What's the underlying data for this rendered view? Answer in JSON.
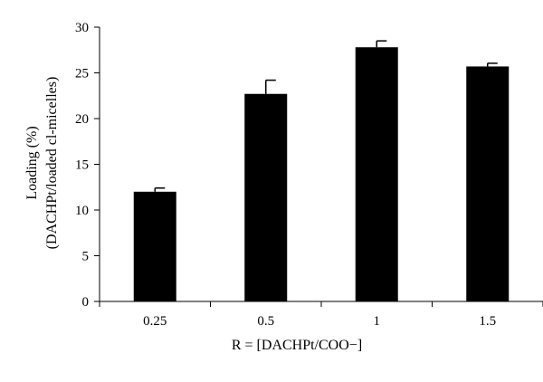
{
  "chart_data": {
    "type": "bar",
    "title": "",
    "xlabel": "R = [DACHPt/COO−]",
    "ylabel_line1": "Loading (%)",
    "ylabel_line2": "(DACHPt/loaded cl-micelles)",
    "categories": [
      "0.25",
      "0.5",
      "1",
      "1.5"
    ],
    "values": [
      12.0,
      22.7,
      27.8,
      25.7
    ],
    "errors": [
      0.4,
      1.5,
      0.7,
      0.35
    ],
    "ylim": [
      0,
      30
    ],
    "yticks": [
      0,
      5,
      10,
      15,
      20,
      25,
      30
    ],
    "ytick_labels": [
      "0",
      "5",
      "10",
      "15",
      "20",
      "25",
      "30"
    ],
    "bar_color": "#000000",
    "grid": false,
    "legend": false
  }
}
